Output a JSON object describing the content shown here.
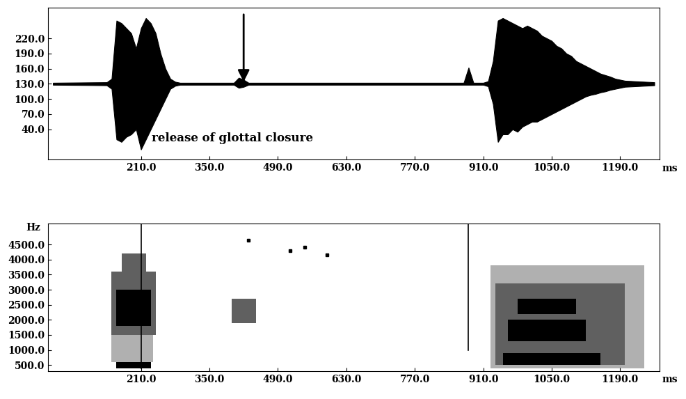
{
  "chart_data": [
    {
      "type": "waveform",
      "x": [
        30,
        140,
        150,
        160,
        170,
        180,
        190,
        200,
        210,
        220,
        230,
        240,
        250,
        260,
        270,
        280,
        290,
        400,
        410,
        420,
        430,
        870,
        880,
        890,
        910,
        920,
        930,
        940,
        950,
        960,
        970,
        980,
        990,
        1000,
        1010,
        1020,
        1030,
        1040,
        1050,
        1060,
        1070,
        1080,
        1090,
        1100,
        1110,
        1120,
        1130,
        1140,
        1150,
        1160,
        1170,
        1180,
        1190,
        1200,
        1260
      ],
      "upper": [
        132,
        133,
        140,
        255,
        250,
        240,
        230,
        200,
        240,
        260,
        250,
        230,
        190,
        160,
        140,
        134,
        132,
        132,
        142,
        138,
        132,
        132,
        162,
        132,
        132,
        135,
        175,
        255,
        260,
        255,
        250,
        245,
        240,
        245,
        240,
        235,
        225,
        220,
        215,
        205,
        200,
        190,
        185,
        175,
        170,
        165,
        160,
        155,
        150,
        147,
        144,
        140,
        138,
        136,
        133
      ],
      "lower": [
        128,
        127,
        120,
        20,
        15,
        25,
        30,
        40,
        0,
        20,
        40,
        60,
        80,
        100,
        120,
        126,
        128,
        128,
        122,
        124,
        128,
        128,
        128,
        128,
        128,
        125,
        90,
        15,
        30,
        30,
        40,
        35,
        45,
        50,
        55,
        55,
        60,
        65,
        70,
        75,
        80,
        85,
        90,
        95,
        100,
        105,
        108,
        110,
        113,
        115,
        118,
        120,
        122,
        124,
        127
      ],
      "xlim": [
        20,
        1270
      ],
      "ylim": [
        -20,
        280
      ],
      "xticks": [
        210.0,
        350.0,
        490.0,
        630.0,
        770.0,
        910.0,
        1050.0,
        1190.0
      ],
      "yticks": [
        220.0,
        190.0,
        160.0,
        130.0,
        100.0,
        70.0,
        40.0
      ],
      "x_label": "ms",
      "annotations": [
        {
          "text": "release of glottal closure",
          "x": 420
        }
      ]
    },
    {
      "type": "spectrogram",
      "regions": [
        {
          "x": [
            150,
            235
          ],
          "y": [
            600,
            1500
          ],
          "level": 1
        },
        {
          "x": [
            150,
            240
          ],
          "y": [
            1500,
            3600
          ],
          "level": 2
        },
        {
          "x": [
            170,
            220
          ],
          "y": [
            3000,
            4200
          ],
          "level": 2
        },
        {
          "x": [
            160,
            230
          ],
          "y": [
            1800,
            3000
          ],
          "level": 3
        },
        {
          "x": [
            160,
            230
          ],
          "y": [
            400,
            600
          ],
          "level": 3
        },
        {
          "x": [
            395,
            445
          ],
          "y": [
            1900,
            2700
          ],
          "level": 2
        },
        {
          "x": [
            925,
            1240
          ],
          "y": [
            400,
            3800
          ],
          "level": 1
        },
        {
          "x": [
            935,
            1200
          ],
          "y": [
            500,
            3200
          ],
          "level": 2
        },
        {
          "x": [
            950,
            1150
          ],
          "y": [
            500,
            900
          ],
          "level": 3
        },
        {
          "x": [
            960,
            1120
          ],
          "y": [
            1300,
            2000
          ],
          "level": 3
        },
        {
          "x": [
            980,
            1100
          ],
          "y": [
            2200,
            2700
          ],
          "level": 3
        }
      ],
      "lines": [
        {
          "x": 210,
          "y": [
            400,
            5200
          ]
        },
        {
          "x": 880,
          "y": [
            1000,
            5200
          ]
        }
      ],
      "points": {
        "x": [
          430,
          515,
          545,
          590
        ],
        "y": [
          4650,
          4300,
          4400,
          4150
        ]
      },
      "xlim": [
        20,
        1270
      ],
      "ylim": [
        300,
        5200
      ],
      "xticks": [
        210.0,
        350.0,
        490.0,
        630.0,
        770.0,
        910.0,
        1050.0,
        1190.0
      ],
      "yticks": [
        500.0,
        1000.0,
        1500.0,
        2000.0,
        2500.0,
        3000.0,
        3500.0,
        4000.0,
        4500.0
      ],
      "x_label": "ms",
      "y_label": "Hz"
    }
  ]
}
